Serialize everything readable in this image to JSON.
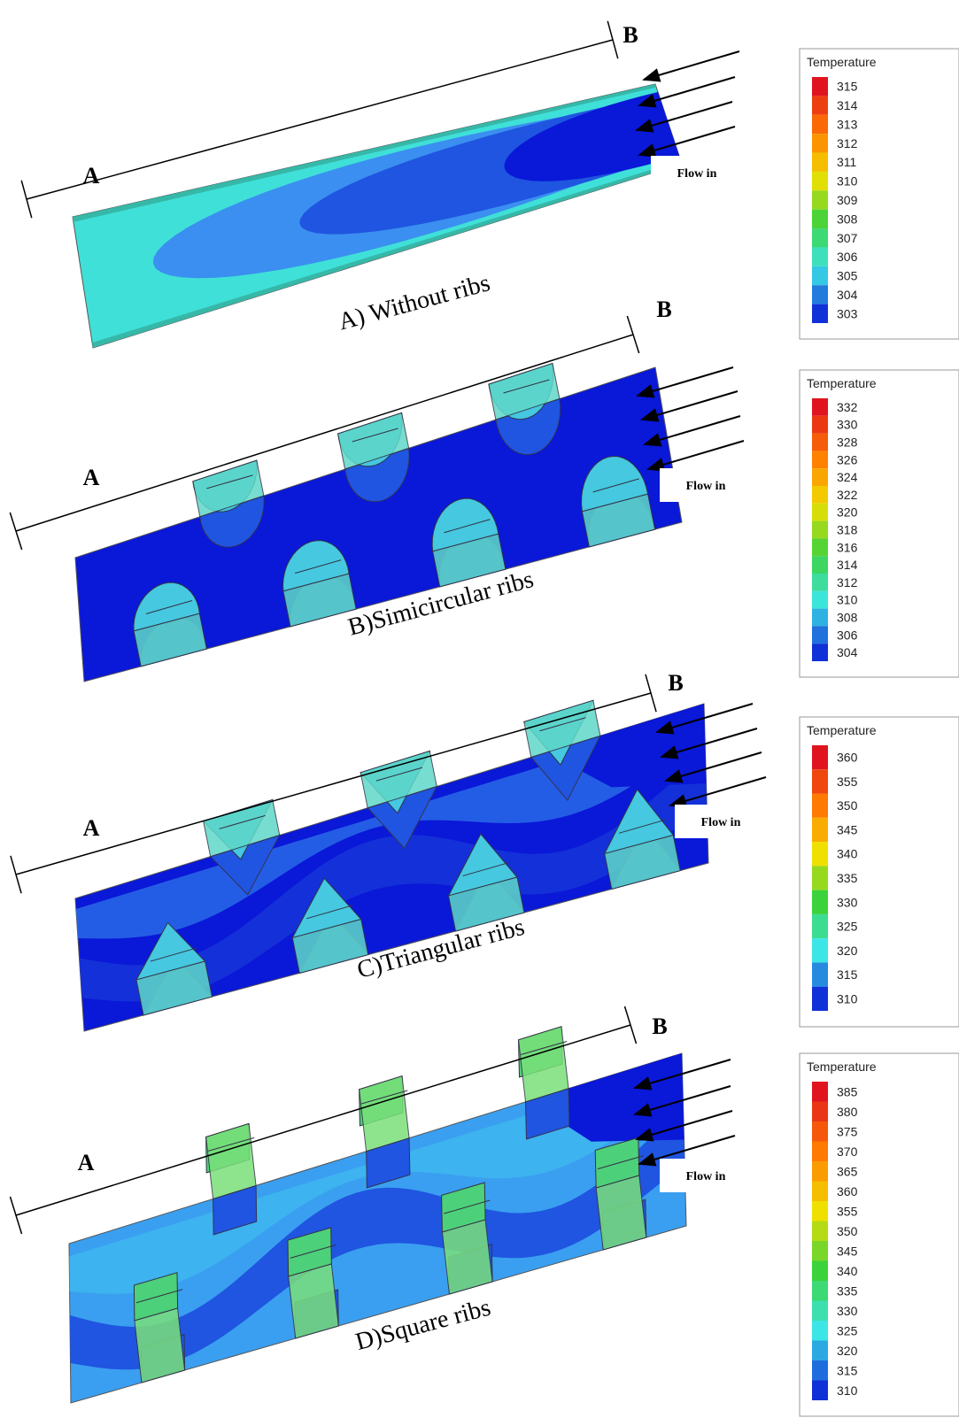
{
  "panels": [
    {
      "caption": "A) Without ribs",
      "label_a": "A",
      "label_b": "B",
      "flow_label": "Flow in",
      "legend": {
        "title": "Temperature",
        "values": [
          315,
          314,
          313,
          312,
          311,
          310,
          309,
          308,
          307,
          306,
          305,
          304,
          303
        ]
      }
    },
    {
      "caption": "B)Simicircular ribs",
      "label_a": "A",
      "label_b": "B",
      "flow_label": "Flow in",
      "legend": {
        "title": "Temperature",
        "values": [
          332,
          330,
          328,
          326,
          324,
          322,
          320,
          318,
          316,
          314,
          312,
          310,
          308,
          306,
          304
        ]
      }
    },
    {
      "caption": "C)Triangular ribs",
      "label_a": "A",
      "label_b": "B",
      "flow_label": "Flow in",
      "legend": {
        "title": "Temperature",
        "values": [
          360,
          355,
          350,
          345,
          340,
          335,
          330,
          325,
          320,
          315,
          310
        ]
      }
    },
    {
      "caption": "D)Square ribs",
      "label_a": "A",
      "label_b": "B",
      "flow_label": "Flow in",
      "legend": {
        "title": "Temperature",
        "values": [
          385,
          380,
          375,
          370,
          365,
          360,
          355,
          350,
          345,
          340,
          335,
          330,
          325,
          320,
          315,
          310
        ]
      }
    }
  ]
}
